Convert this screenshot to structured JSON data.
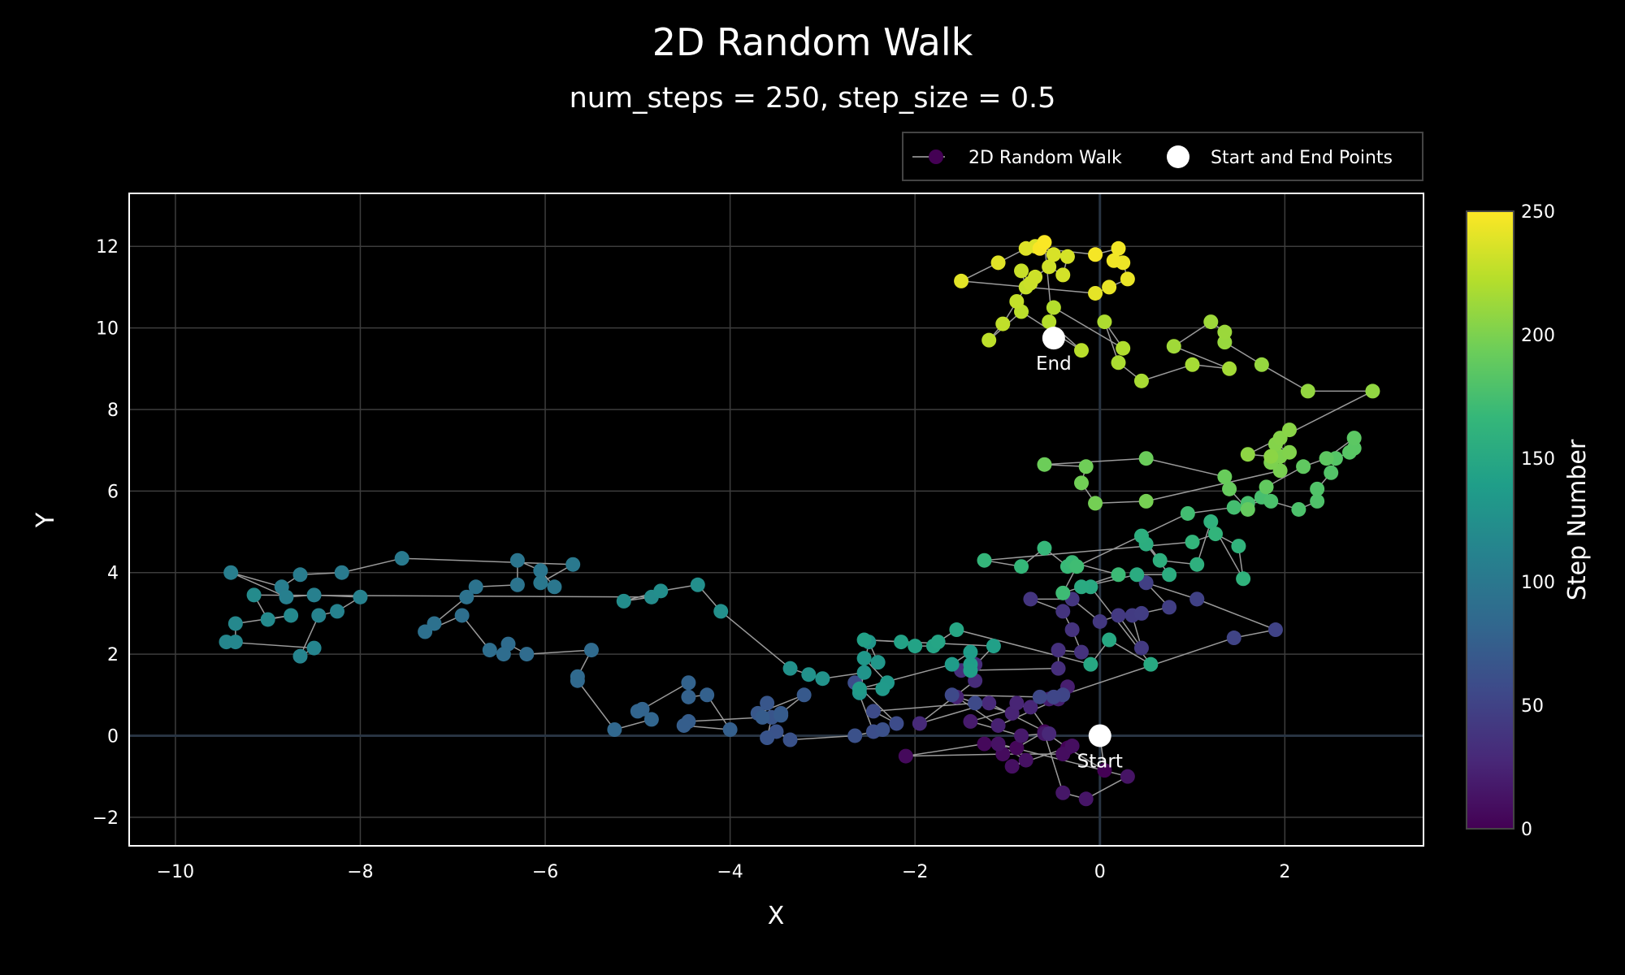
{
  "chart_data": {
    "type": "scatter",
    "title": "2D Random Walk",
    "subtitle": "num_steps = 250, step_size = 0.5",
    "xlabel": "X",
    "ylabel": "Y",
    "xlim": [
      -10.5,
      3.5
    ],
    "ylim": [
      -2.7,
      13.3
    ],
    "x_ticks": [
      -10,
      -8,
      -6,
      -4,
      -2,
      0,
      2
    ],
    "y_ticks": [
      -2,
      0,
      2,
      4,
      6,
      8,
      10,
      12
    ],
    "x_tick_labels": [
      "−10",
      "−8",
      "−6",
      "−4",
      "−2",
      "0",
      "2"
    ],
    "y_tick_labels": [
      "−2",
      "0",
      "2",
      "4",
      "6",
      "8",
      "10",
      "12"
    ],
    "grid": true,
    "legend_position": "top-right",
    "legend": [
      {
        "label": "2D Random Walk",
        "symbol": "line-marker"
      },
      {
        "label": "Start and End Points",
        "symbol": "marker"
      }
    ],
    "colorbar": {
      "title": "Step Number",
      "range": [
        0,
        250
      ],
      "ticks": [
        0,
        50,
        100,
        150,
        200,
        250
      ],
      "tick_labels": [
        "0",
        "50",
        "100",
        "150",
        "200",
        "250"
      ],
      "colorscale": [
        "#440154",
        "#482878",
        "#3e4989",
        "#31688e",
        "#26828e",
        "#1f9e89",
        "#35b779",
        "#6ece58",
        "#b5de2b",
        "#fde725"
      ]
    },
    "series": [
      {
        "name": "2D Random Walk",
        "points": [
          [
            0.0,
            0.0
          ],
          [
            0.05,
            -0.85
          ],
          [
            -0.35,
            -0.3
          ],
          [
            -0.6,
            0.1
          ],
          [
            -0.9,
            -0.3
          ],
          [
            -1.25,
            -0.2
          ],
          [
            -2.1,
            -0.5
          ],
          [
            -1.05,
            -0.45
          ],
          [
            -0.4,
            -0.45
          ],
          [
            -0.3,
            -0.25
          ],
          [
            -0.95,
            -0.75
          ],
          [
            -0.8,
            -0.6
          ],
          [
            -1.1,
            -0.2
          ],
          [
            0.3,
            -1.0
          ],
          [
            -0.15,
            -1.55
          ],
          [
            -0.4,
            -1.4
          ],
          [
            -0.6,
            0.05
          ],
          [
            -0.85,
            0.0
          ],
          [
            -1.4,
            0.35
          ],
          [
            -0.55,
            0.9
          ],
          [
            -0.35,
            1.2
          ],
          [
            -0.45,
            0.9
          ],
          [
            -1.1,
            0.25
          ],
          [
            -1.55,
            0.95
          ],
          [
            -0.95,
            0.55
          ],
          [
            -0.9,
            0.8
          ],
          [
            -0.75,
            0.7
          ],
          [
            -0.55,
            0.05
          ],
          [
            -1.2,
            0.8
          ],
          [
            -1.95,
            0.3
          ],
          [
            -1.35,
            1.35
          ],
          [
            -1.35,
            1.75
          ],
          [
            -1.5,
            1.6
          ],
          [
            -0.45,
            1.65
          ],
          [
            -0.45,
            2.1
          ],
          [
            -0.2,
            2.05
          ],
          [
            -0.3,
            2.6
          ],
          [
            -0.4,
            3.05
          ],
          [
            -0.75,
            3.35
          ],
          [
            -0.3,
            3.35
          ],
          [
            0.0,
            2.8
          ],
          [
            0.2,
            2.95
          ],
          [
            0.45,
            2.15
          ],
          [
            0.35,
            2.95
          ],
          [
            0.45,
            3.0
          ],
          [
            0.75,
            3.15
          ],
          [
            0.5,
            3.75
          ],
          [
            1.05,
            3.35
          ],
          [
            1.05,
            3.35
          ],
          [
            1.9,
            2.6
          ],
          [
            1.45,
            2.4
          ],
          [
            -0.4,
            1.0
          ],
          [
            -0.5,
            0.95
          ],
          [
            -0.65,
            0.95
          ],
          [
            -1.6,
            1.0
          ],
          [
            -1.35,
            0.8
          ],
          [
            -2.45,
            0.6
          ],
          [
            -2.2,
            0.3
          ],
          [
            -2.65,
            1.3
          ],
          [
            -2.45,
            0.1
          ],
          [
            -2.35,
            0.15
          ],
          [
            -2.65,
            0.0
          ],
          [
            -3.35,
            -0.1
          ],
          [
            -3.5,
            0.1
          ],
          [
            -3.6,
            -0.05
          ],
          [
            -3.55,
            0.45
          ],
          [
            -3.6,
            0.8
          ],
          [
            -3.7,
            0.55
          ],
          [
            -3.2,
            1.0
          ],
          [
            -3.45,
            0.55
          ],
          [
            -3.45,
            0.5
          ],
          [
            -3.65,
            0.45
          ],
          [
            -4.45,
            0.35
          ],
          [
            -4.5,
            0.25
          ],
          [
            -4.0,
            0.15
          ],
          [
            -4.25,
            1.0
          ],
          [
            -4.45,
            0.95
          ],
          [
            -4.45,
            1.3
          ],
          [
            -4.95,
            0.65
          ],
          [
            -5.0,
            0.6
          ],
          [
            -4.85,
            0.4
          ],
          [
            -5.25,
            0.15
          ],
          [
            -5.65,
            1.35
          ],
          [
            -5.65,
            1.45
          ],
          [
            -5.5,
            2.1
          ],
          [
            -6.2,
            2.0
          ],
          [
            -6.4,
            2.25
          ],
          [
            -6.45,
            2.0
          ],
          [
            -6.6,
            2.1
          ],
          [
            -6.9,
            2.95
          ],
          [
            -7.3,
            2.55
          ],
          [
            -7.2,
            2.75
          ],
          [
            -6.85,
            3.4
          ],
          [
            -6.75,
            3.65
          ],
          [
            -6.3,
            3.7
          ],
          [
            -6.3,
            4.3
          ],
          [
            -6.05,
            4.05
          ],
          [
            -5.9,
            3.65
          ],
          [
            -6.05,
            3.75
          ],
          [
            -5.7,
            4.2
          ],
          [
            -7.55,
            4.35
          ],
          [
            -8.2,
            4.0
          ],
          [
            -8.65,
            3.95
          ],
          [
            -8.85,
            3.65
          ],
          [
            -9.4,
            4.0
          ],
          [
            -8.8,
            3.4
          ],
          [
            -8.5,
            3.45
          ],
          [
            -8.0,
            3.4
          ],
          [
            -8.25,
            3.05
          ],
          [
            -8.45,
            2.95
          ],
          [
            -8.65,
            1.95
          ],
          [
            -8.5,
            2.15
          ],
          [
            -9.45,
            2.3
          ],
          [
            -9.35,
            2.3
          ],
          [
            -9.35,
            2.75
          ],
          [
            -8.75,
            2.95
          ],
          [
            -9.0,
            2.85
          ],
          [
            -9.15,
            3.45
          ],
          [
            -4.85,
            3.4
          ],
          [
            -5.15,
            3.3
          ],
          [
            -4.75,
            3.55
          ],
          [
            -4.35,
            3.7
          ],
          [
            -4.1,
            3.05
          ],
          [
            -3.35,
            1.65
          ],
          [
            -3.15,
            1.5
          ],
          [
            -3.0,
            1.4
          ],
          [
            -2.55,
            1.55
          ],
          [
            -2.6,
            1.05
          ],
          [
            -2.5,
            2.3
          ],
          [
            -2.4,
            1.8
          ],
          [
            -2.55,
            1.9
          ],
          [
            -2.3,
            1.3
          ],
          [
            -2.35,
            1.15
          ],
          [
            -2.6,
            1.15
          ],
          [
            -1.6,
            1.75
          ],
          [
            -1.4,
            2.05
          ],
          [
            -1.4,
            1.75
          ],
          [
            -1.4,
            1.6
          ],
          [
            -1.15,
            2.2
          ],
          [
            -2.55,
            2.35
          ],
          [
            -2.15,
            2.3
          ],
          [
            -2.0,
            2.2
          ],
          [
            -1.8,
            2.2
          ],
          [
            -1.75,
            2.3
          ],
          [
            -1.55,
            2.6
          ],
          [
            -0.1,
            1.75
          ],
          [
            0.1,
            2.35
          ],
          [
            0.55,
            1.75
          ],
          [
            -0.1,
            3.65
          ],
          [
            -0.2,
            3.65
          ],
          [
            0.4,
            3.95
          ],
          [
            0.75,
            3.95
          ],
          [
            0.5,
            4.7
          ],
          [
            0.45,
            4.9
          ],
          [
            0.65,
            4.3
          ],
          [
            1.05,
            4.2
          ],
          [
            1.2,
            5.25
          ],
          [
            1.55,
            3.85
          ],
          [
            1.5,
            4.65
          ],
          [
            1.25,
            4.95
          ],
          [
            1.0,
            4.75
          ],
          [
            -1.25,
            4.3
          ],
          [
            -0.85,
            4.15
          ],
          [
            -0.6,
            4.6
          ],
          [
            -0.35,
            4.15
          ],
          [
            -0.3,
            4.25
          ],
          [
            0.2,
            3.95
          ],
          [
            -0.4,
            3.5
          ],
          [
            -0.25,
            4.15
          ],
          [
            0.95,
            5.45
          ],
          [
            1.45,
            5.6
          ],
          [
            1.75,
            5.85
          ],
          [
            1.6,
            5.7
          ],
          [
            1.85,
            5.75
          ],
          [
            2.15,
            5.55
          ],
          [
            2.35,
            5.75
          ],
          [
            2.35,
            6.05
          ],
          [
            2.5,
            6.45
          ],
          [
            2.55,
            6.8
          ],
          [
            2.7,
            6.95
          ],
          [
            2.75,
            7.05
          ],
          [
            2.75,
            7.3
          ],
          [
            2.45,
            6.8
          ],
          [
            2.2,
            6.6
          ],
          [
            1.8,
            6.1
          ],
          [
            1.6,
            5.55
          ],
          [
            1.4,
            6.05
          ],
          [
            1.35,
            6.35
          ],
          [
            0.5,
            6.8
          ],
          [
            -0.6,
            6.65
          ],
          [
            -0.15,
            6.6
          ],
          [
            -0.2,
            6.2
          ],
          [
            -0.05,
            5.7
          ],
          [
            0.5,
            5.75
          ],
          [
            1.95,
            6.5
          ],
          [
            1.85,
            6.7
          ],
          [
            1.95,
            6.85
          ],
          [
            2.05,
            6.95
          ],
          [
            1.9,
            7.15
          ],
          [
            1.95,
            7.3
          ],
          [
            2.05,
            7.5
          ],
          [
            1.85,
            6.85
          ],
          [
            1.6,
            6.9
          ],
          [
            2.95,
            8.45
          ],
          [
            2.25,
            8.45
          ],
          [
            1.75,
            9.1
          ],
          [
            1.35,
            9.65
          ],
          [
            1.35,
            9.9
          ],
          [
            1.2,
            10.15
          ],
          [
            0.8,
            9.55
          ],
          [
            1.4,
            9.0
          ],
          [
            1.0,
            9.1
          ],
          [
            0.45,
            8.7
          ],
          [
            0.2,
            9.15
          ],
          [
            0.05,
            10.15
          ],
          [
            0.25,
            9.5
          ],
          [
            -0.5,
            10.5
          ],
          [
            -0.55,
            10.15
          ],
          [
            -0.2,
            9.45
          ],
          [
            -0.85,
            10.4
          ],
          [
            -1.2,
            9.7
          ],
          [
            -1.05,
            10.1
          ],
          [
            -0.9,
            10.65
          ],
          [
            -0.8,
            11.0
          ],
          [
            -0.85,
            11.4
          ],
          [
            -0.75,
            11.1
          ],
          [
            -0.7,
            11.25
          ],
          [
            -0.55,
            11.5
          ],
          [
            -0.4,
            11.3
          ],
          [
            -0.35,
            11.75
          ],
          [
            -0.5,
            11.8
          ],
          [
            -0.7,
            12.0
          ],
          [
            -0.8,
            11.95
          ],
          [
            -1.1,
            11.6
          ],
          [
            -1.5,
            11.15
          ],
          [
            -0.05,
            10.85
          ],
          [
            0.1,
            11.0
          ],
          [
            0.3,
            11.2
          ],
          [
            0.25,
            11.6
          ],
          [
            0.15,
            11.65
          ],
          [
            0.2,
            11.95
          ],
          [
            -0.05,
            11.8
          ],
          [
            -0.65,
            11.95
          ],
          [
            -0.6,
            12.1
          ],
          [
            -0.5,
            9.75
          ]
        ]
      },
      {
        "name": "Start and End Points",
        "points": [
          [
            0.0,
            0.0
          ],
          [
            -0.5,
            9.75
          ]
        ],
        "labels": [
          "Start",
          "End"
        ]
      }
    ]
  }
}
